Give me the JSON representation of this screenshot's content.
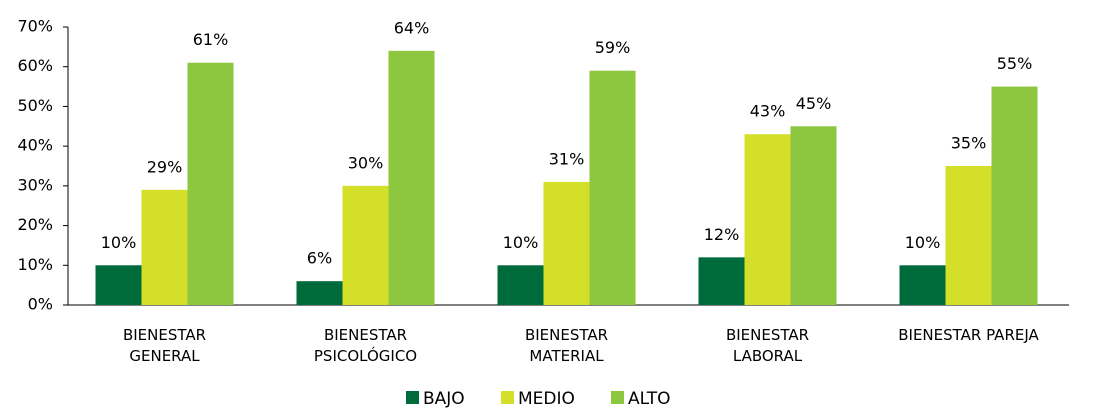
{
  "chart_data": {
    "type": "bar",
    "categories": [
      "BIENESTAR\nGENERAL",
      "BIENESTAR\nPSICOLÓGICO",
      "BIENESTAR\nMATERIAL",
      "BIENESTAR\nLABORAL",
      "BIENESTAR PAREJA"
    ],
    "series": [
      {
        "name": "BAJO",
        "color": "#006b3a",
        "values": [
          10,
          6,
          10,
          12,
          10
        ],
        "value_labels": [
          "10%",
          "6%",
          "10%",
          "12%",
          "10%"
        ]
      },
      {
        "name": "MEDIO",
        "color": "#d4df2a",
        "values": [
          29,
          30,
          31,
          43,
          35
        ],
        "value_labels": [
          "29%",
          "30%",
          "31%",
          "43%",
          "35%"
        ]
      },
      {
        "name": "ALTO",
        "color": "#8dc63f",
        "values": [
          61,
          64,
          59,
          45,
          55
        ],
        "value_labels": [
          "61%",
          "64%",
          "59%",
          "45%",
          "55%"
        ]
      }
    ],
    "ylim": [
      0,
      70
    ],
    "yticks": [
      {
        "value": 0,
        "label": "0%"
      },
      {
        "value": 10,
        "label": "10%"
      },
      {
        "value": 20,
        "label": "20%"
      },
      {
        "value": 30,
        "label": "30%"
      },
      {
        "value": 40,
        "label": "40%"
      },
      {
        "value": 50,
        "label": "50%"
      },
      {
        "value": 60,
        "label": "60%"
      },
      {
        "value": 70,
        "label": "70%"
      }
    ],
    "grid": false,
    "legend": "bottom"
  }
}
